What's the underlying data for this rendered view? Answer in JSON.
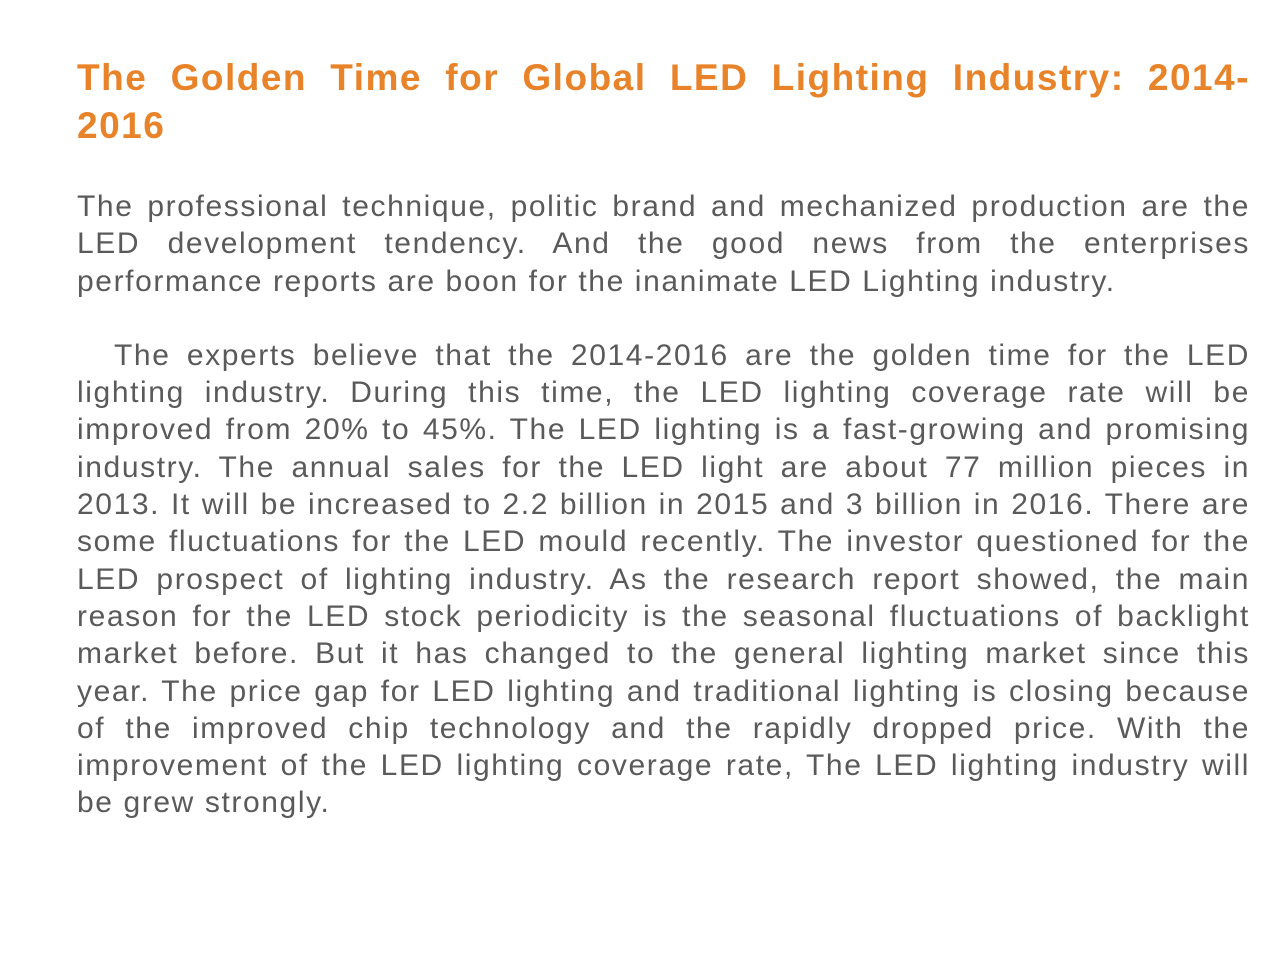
{
  "article": {
    "title": "The Golden Time for Global LED Lighting Industry: 2014-2016",
    "paragraphs": [
      "The professional technique, politic brand and mechanized production are the LED development tendency. And the good news from the enterprises performance reports are boon for the inanimate LED Lighting industry.",
      "The experts believe that the 2014-2016 are the golden time for the LED lighting industry. During this time, the LED lighting coverage rate will be improved from 20% to 45%. The LED lighting is a fast-growing and promising industry. The annual sales for the LED light are about 77 million pieces in 2013. It will be increased to 2.2 billion in 2015 and 3 billion in 2016. There are some fluctuations for the LED mould recently. The investor questioned for the LED prospect of lighting industry. As the research report showed, the main reason for the LED stock periodicity is the seasonal fluctuations of backlight market before. But it has changed to the general lighting market since this year. The price gap for LED lighting and traditional lighting is closing because of the improved chip technology and the rapidly dropped price. With the improvement of the LED lighting coverage rate, The LED lighting industry will be grew strongly."
    ]
  },
  "colors": {
    "title": "#e8832a",
    "body_text": "#5a5a5a",
    "background": "#ffffff"
  }
}
